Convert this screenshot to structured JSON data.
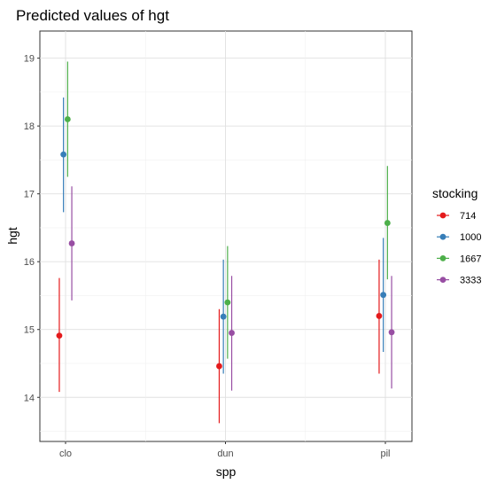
{
  "chart_data": {
    "type": "scatter",
    "title": "Predicted values of hgt",
    "xlabel": "spp",
    "ylabel": "hgt",
    "categories": [
      "clo",
      "dun",
      "pil"
    ],
    "yticks": [
      14,
      15,
      16,
      17,
      18,
      19
    ],
    "ylim": [
      13.35,
      19.4
    ],
    "grid": true,
    "legend": {
      "title": "stocking",
      "placement": "right"
    },
    "series": [
      {
        "name": "714",
        "color": "#e41a1c",
        "values": [
          14.91,
          14.46,
          15.2
        ],
        "lower": [
          14.08,
          13.62,
          14.35
        ],
        "upper": [
          15.76,
          15.3,
          16.03
        ]
      },
      {
        "name": "1000",
        "color": "#377eb8",
        "values": [
          17.58,
          15.19,
          15.51
        ],
        "lower": [
          16.73,
          14.35,
          14.67
        ],
        "upper": [
          18.42,
          16.03,
          16.35
        ]
      },
      {
        "name": "1667",
        "color": "#4daf4a",
        "values": [
          18.1,
          15.4,
          16.57
        ],
        "lower": [
          17.25,
          14.57,
          15.74
        ],
        "upper": [
          18.95,
          16.23,
          17.41
        ]
      },
      {
        "name": "3333",
        "color": "#984ea3",
        "values": [
          16.27,
          14.95,
          14.96
        ],
        "lower": [
          15.43,
          14.1,
          14.13
        ],
        "upper": [
          17.11,
          15.79,
          15.79
        ]
      }
    ]
  }
}
